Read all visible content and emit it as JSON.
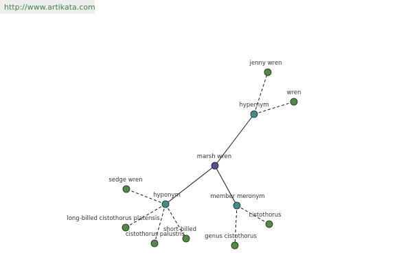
{
  "header": {
    "url": "http://www.artikata.com"
  },
  "nodes": [
    {
      "label": "marsh wren"
    },
    {
      "label": "hypernym"
    },
    {
      "label": "jenny wren"
    },
    {
      "label": "wren"
    },
    {
      "label": "hyponym"
    },
    {
      "label": "sedge wren"
    },
    {
      "label": "long-billed cistothorus platensis"
    },
    {
      "label": "cistothorus palustris"
    },
    {
      "label": "short-billed"
    },
    {
      "label": "member meronym"
    },
    {
      "label": "cistothorus"
    },
    {
      "label": "genus cistothorus"
    }
  ]
}
